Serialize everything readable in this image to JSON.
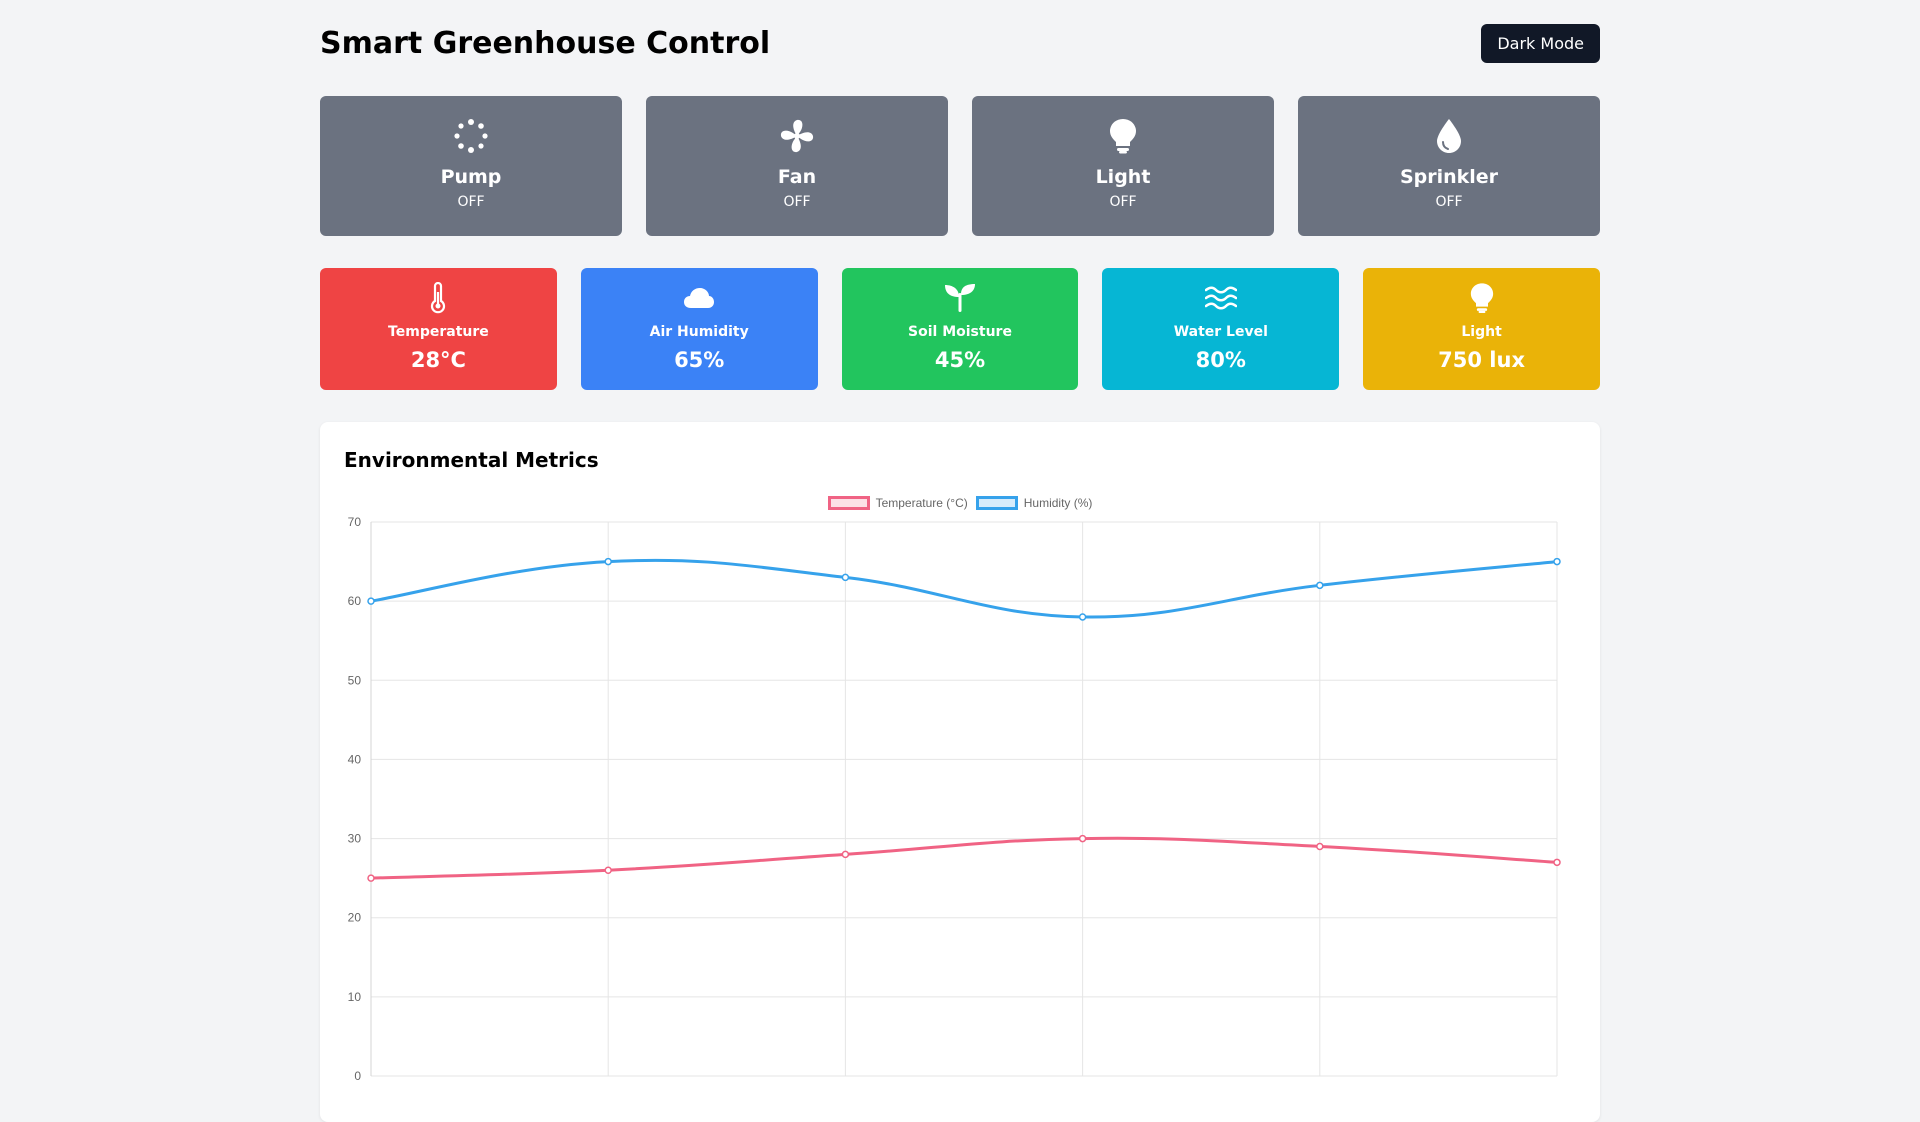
{
  "header": {
    "title": "Smart Greenhouse Control",
    "dark_mode_label": "Dark Mode"
  },
  "controls": [
    {
      "name": "Pump",
      "state": "OFF",
      "icon": "spinner-icon"
    },
    {
      "name": "Fan",
      "state": "OFF",
      "icon": "fan-icon"
    },
    {
      "name": "Light",
      "state": "OFF",
      "icon": "lightbulb-icon"
    },
    {
      "name": "Sprinkler",
      "state": "OFF",
      "icon": "droplet-icon"
    }
  ],
  "sensors": [
    {
      "label": "Temperature",
      "value": "28°C",
      "color": "#ef4444",
      "icon": "thermometer-icon"
    },
    {
      "label": "Air Humidity",
      "value": "65%",
      "color": "#3b82f6",
      "icon": "cloud-icon"
    },
    {
      "label": "Soil Moisture",
      "value": "45%",
      "color": "#22c55e",
      "icon": "seedling-icon"
    },
    {
      "label": "Water Level",
      "value": "80%",
      "color": "#06b6d4",
      "icon": "water-icon"
    },
    {
      "label": "Light",
      "value": "750 lux",
      "color": "#eab308",
      "icon": "lightbulb-icon"
    }
  ],
  "chart_card": {
    "title": "Environmental Metrics"
  },
  "chart_data": {
    "type": "line",
    "x": [
      0,
      1,
      2,
      3,
      4,
      5
    ],
    "series": [
      {
        "name": "Temperature (°C)",
        "values": [
          25,
          26,
          28,
          30,
          29,
          27
        ],
        "color": "#f06384"
      },
      {
        "name": "Humidity (%)",
        "values": [
          60,
          65,
          63,
          58,
          62,
          65
        ],
        "color": "#36a2eb"
      }
    ],
    "ylim": [
      0,
      70
    ],
    "yticks": [
      0,
      10,
      20,
      30,
      40,
      50,
      60,
      70
    ],
    "grid": true,
    "legend": "top-center"
  }
}
